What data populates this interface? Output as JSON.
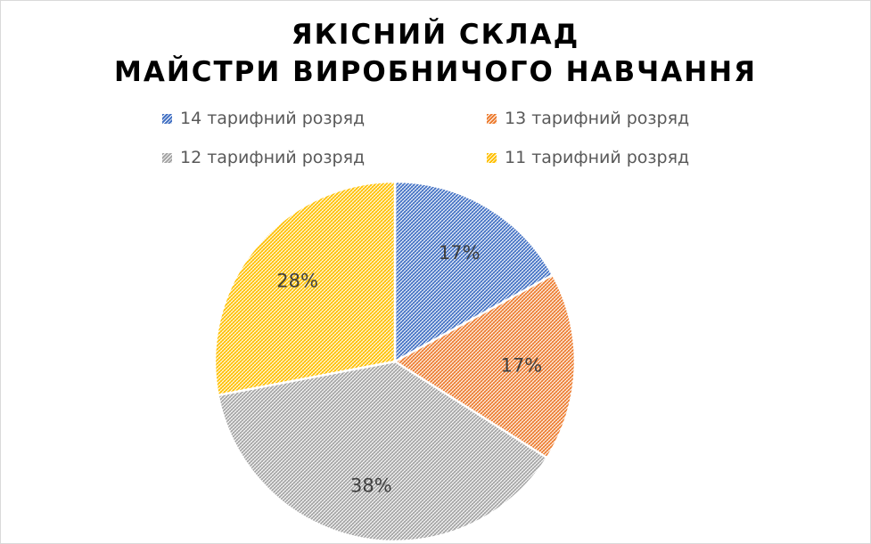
{
  "chart_data": {
    "type": "pie",
    "title_lines": [
      "ЯКІСНИЙ СКЛАД",
      "МАЙСТРИ ВИРОБНИЧОГО НАВЧАННЯ"
    ],
    "categories": [
      "14 тарифний розряд",
      "13 тарифний розряд",
      "12 тарифний розряд",
      "11 тарифний розряд"
    ],
    "values": [
      17,
      17,
      38,
      28
    ],
    "labels": [
      "17%",
      "17%",
      "38%",
      "28%"
    ],
    "colors": [
      "#4472C4",
      "#ED7D31",
      "#A5A5A5",
      "#FFC000"
    ],
    "fill_pattern": "hatched",
    "legend_position": "top"
  }
}
